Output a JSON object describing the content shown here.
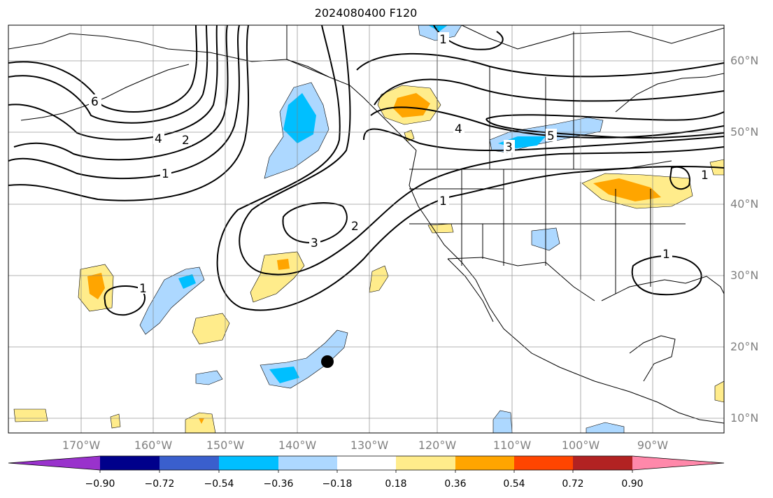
{
  "title": "2024080400 F120",
  "longitude_labels": [
    "170°W",
    "160°W",
    "150°W",
    "140°W",
    "130°W",
    "120°W",
    "110°W",
    "100°W",
    "90°W"
  ],
  "latitude_labels": [
    "60°N",
    "50°N",
    "40°N",
    "30°N",
    "20°N",
    "10°N"
  ],
  "contour_labels": [
    "6",
    "4",
    "2",
    "1",
    "1",
    "3",
    "2",
    "1",
    "4",
    "3",
    "5",
    "1",
    "1",
    "1"
  ],
  "colorbar": {
    "tick_labels": [
      "−0.90",
      "−0.72",
      "−0.54",
      "−0.36",
      "−0.18",
      "0.18",
      "0.36",
      "0.54",
      "0.72",
      "0.90"
    ],
    "colors": [
      "#9932cc",
      "#00008b",
      "#3a5fcd",
      "#00bfff",
      "#add8ff",
      "#ffffff",
      "#ffec8b",
      "#ffa500",
      "#ff4500",
      "#b22222",
      "#ff88aa"
    ]
  },
  "marker": {
    "lon": -135,
    "lat": 18,
    "color": "#000000"
  }
}
